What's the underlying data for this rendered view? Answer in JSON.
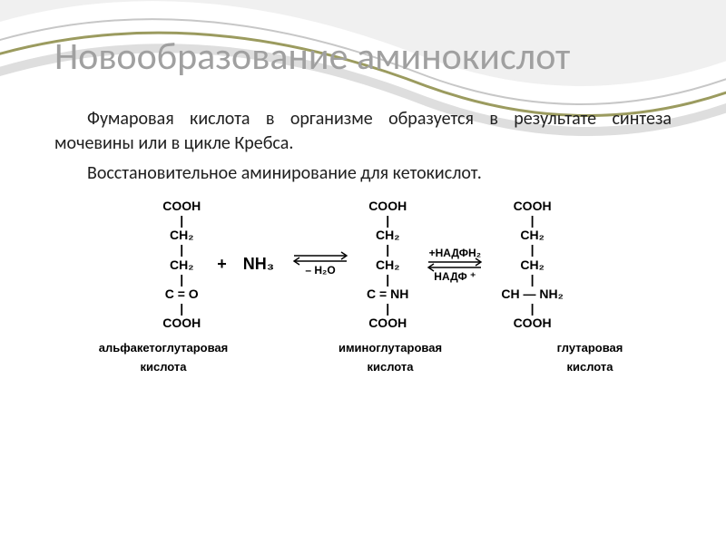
{
  "title": "Новообразование аминокислот",
  "paragraph1": "Фумаровая кислота в организме образуется в результате синтеза мочевины или в цикле Кребса.",
  "paragraph2": "Восстановительное аминирование для кетокислот.",
  "colors": {
    "title": "#a0a0a0",
    "body": "#202020",
    "swoosh_top": "#c7c7c7",
    "swoosh_mid": "#9b9b5f",
    "swoosh_bot": "#dedede",
    "black": "#000000"
  },
  "reaction": {
    "mol1_lines": [
      "COOH",
      "|",
      "CH₂",
      "|",
      "CH₂",
      "|",
      "C = O",
      "|",
      "COOH"
    ],
    "plus": "+",
    "reagent1": "NH₃",
    "arrow1_top": "",
    "arrow1_bot": "– H₂O",
    "mol2_lines": [
      "COOH",
      "|",
      "CH₂",
      "|",
      "CH₂",
      "|",
      "C = NH",
      "|",
      "COOH"
    ],
    "arrow2_top": "+НАДФН₂",
    "arrow2_bot": "НАДФ ⁺",
    "mol3_lines": [
      "COOH",
      "|",
      "CH₂",
      "|",
      "CH₂",
      "|",
      "CH — NH₂",
      "|",
      "COOH"
    ]
  },
  "labels": {
    "l1_top": "альфакетоглутаровая",
    "l1_bot": "кислота",
    "l2_top": "иминоглутаровая",
    "l2_bot": "кислота",
    "l3_top": "глутаровая",
    "l3_bot": "кислота"
  }
}
